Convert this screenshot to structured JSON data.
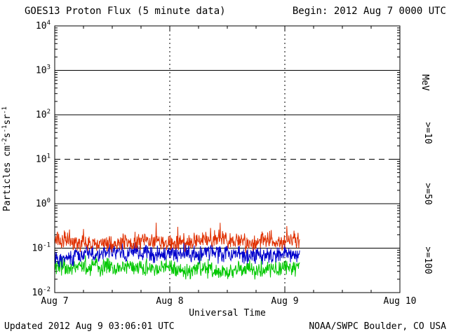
{
  "header": {
    "title": "GOES13 Proton Flux (5 minute data)",
    "begin": "Begin: 2012 Aug 7 0000 UTC"
  },
  "footer": {
    "updated": "Updated 2012 Aug  9 03:06:01 UTC",
    "credit": "NOAA/SWPC Boulder, CO USA"
  },
  "right_axis": {
    "unit": "MeV",
    "unit_color": "#000000"
  },
  "chart_data": {
    "type": "line",
    "title": "GOES13 Proton Flux (5 minute data)",
    "xlabel": "Universal Time",
    "ylabel": "Particles cm^-2s^-1sr^-1",
    "x_ticks": [
      "Aug 7",
      "Aug 8",
      "Aug 9",
      "Aug 10"
    ],
    "x_range_days": 3,
    "y_scale": "log",
    "ylim": [
      0.01,
      10000
    ],
    "y_ticks": [
      "10^4",
      "10^3",
      "10^2",
      "10^1",
      "10^0",
      "10^-1",
      "10^-2"
    ],
    "grid": {
      "solid_exponents": [
        3,
        2,
        0,
        -1
      ],
      "dashed_exponents": [
        1
      ],
      "vertical_dotted_day_indices": [
        1,
        2
      ]
    },
    "sample_interval_minutes": 5,
    "data_end_day_fraction": 2.13,
    "series": [
      {
        "name": ">=10 MeV protons",
        "label": ">=10",
        "color": "#e03000",
        "log10_mean": -0.82,
        "log10_noise_amp": 0.15,
        "spike_prob": 0.06,
        "spike_amp": 0.3,
        "seed": 11
      },
      {
        "name": ">=50 MeV protons",
        "label": ">=50",
        "color": "#0000cc",
        "log10_mean": -1.16,
        "log10_noise_amp": 0.15,
        "spike_prob": 0.03,
        "spike_amp": 0.2,
        "seed": 22
      },
      {
        "name": ">=100 MeV protons",
        "label": ">=100",
        "color": "#00c800",
        "log10_mean": -1.47,
        "log10_noise_amp": 0.15,
        "spike_prob": 0.03,
        "spike_amp": 0.22,
        "seed": 33
      }
    ]
  }
}
